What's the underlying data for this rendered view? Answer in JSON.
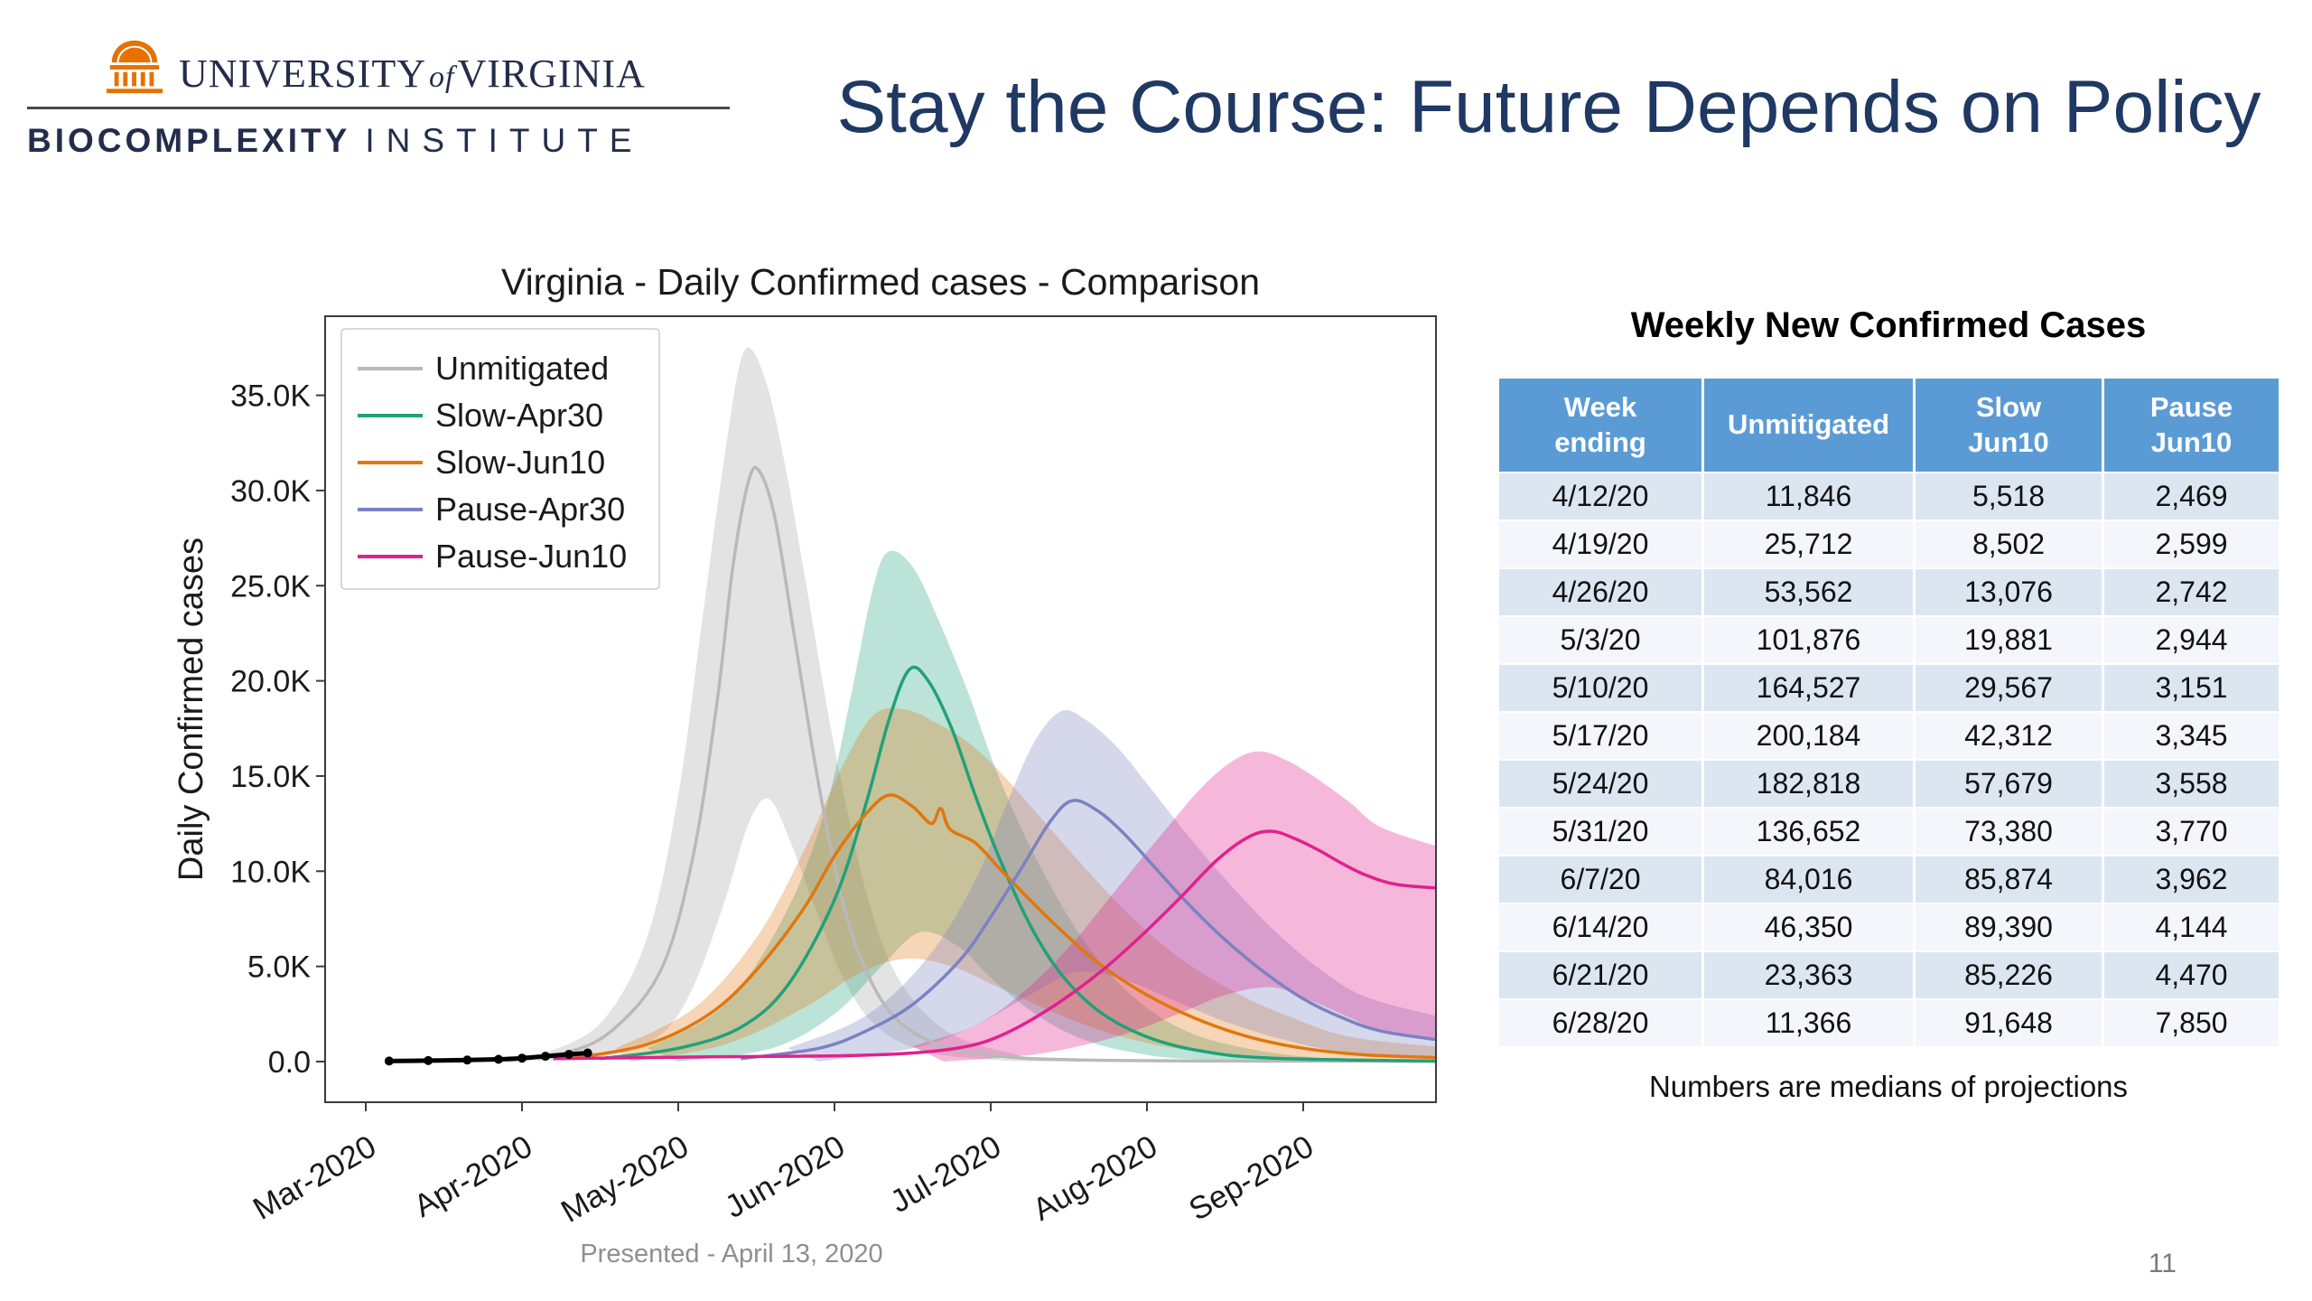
{
  "slide": {
    "title": "Stay the Course: Future Depends on Policy",
    "presented": "Presented - April 13, 2020",
    "page_number": "11"
  },
  "colors": {
    "navy": "#232D4B",
    "uva_orange": "#E57200",
    "title": "#1F3864"
  },
  "logo": {
    "university_pre": "UNIVERSITY",
    "university_of": "of",
    "university_post": "VIRGINIA",
    "institute_bold": "BIOCOMPLEXITY",
    "institute_light": "INSTITUTE"
  },
  "table": {
    "title": "Weekly New Confirmed Cases",
    "header_bg": "#5B9BD5",
    "row_odd_bg": "#DCE6F1",
    "row_even_bg": "#F3F6FA",
    "headers": [
      [
        "Week",
        "ending"
      ],
      [
        "Unmitigated"
      ],
      [
        "Slow",
        "Jun10"
      ],
      [
        "Pause",
        "Jun10"
      ]
    ],
    "rows": [
      [
        "4/12/20",
        "11,846",
        "5,518",
        "2,469"
      ],
      [
        "4/19/20",
        "25,712",
        "8,502",
        "2,599"
      ],
      [
        "4/26/20",
        "53,562",
        "13,076",
        "2,742"
      ],
      [
        "5/3/20",
        "101,876",
        "19,881",
        "2,944"
      ],
      [
        "5/10/20",
        "164,527",
        "29,567",
        "3,151"
      ],
      [
        "5/17/20",
        "200,184",
        "42,312",
        "3,345"
      ],
      [
        "5/24/20",
        "182,818",
        "57,679",
        "3,558"
      ],
      [
        "5/31/20",
        "136,652",
        "73,380",
        "3,770"
      ],
      [
        "6/7/20",
        "84,016",
        "85,874",
        "3,962"
      ],
      [
        "6/14/20",
        "46,350",
        "89,390",
        "4,144"
      ],
      [
        "6/21/20",
        "23,363",
        "85,226",
        "4,470"
      ],
      [
        "6/28/20",
        "11,366",
        "91,648",
        "7,850"
      ]
    ],
    "footnote": "Numbers are medians of projections"
  },
  "chart_data": {
    "type": "line",
    "title": "Virginia - Daily Confirmed cases - Comparison",
    "ylabel": "Daily Confirmed cases",
    "xlabel": "",
    "ylim": [
      0,
      37500
    ],
    "grid": false,
    "legend_position": "upper left",
    "x_ticks": [
      "Mar-2020",
      "Apr-2020",
      "May-2020",
      "Jun-2020",
      "Jul-2020",
      "Aug-2020",
      "Sep-2020"
    ],
    "y_ticks": [
      {
        "value": 0,
        "label": "0.0"
      },
      {
        "value": 5,
        "label": "5.0K"
      },
      {
        "value": 10,
        "label": "10.0K"
      },
      {
        "value": 15,
        "label": "15.0K"
      },
      {
        "value": 20,
        "label": "20.0K"
      },
      {
        "value": 25,
        "label": "25.0K"
      },
      {
        "value": 30,
        "label": "30.0K"
      },
      {
        "value": 35,
        "label": "35.0K"
      }
    ],
    "units": "x in months from Mar-2020, y in thousands of daily confirmed cases (medians with projection bands)",
    "observed": {
      "name": "Observed data",
      "color": "#000000",
      "points": [
        [
          0.15,
          0.03
        ],
        [
          0.4,
          0.05
        ],
        [
          0.65,
          0.08
        ],
        [
          0.85,
          0.12
        ],
        [
          1.0,
          0.18
        ],
        [
          1.15,
          0.28
        ],
        [
          1.3,
          0.38
        ],
        [
          1.42,
          0.45
        ]
      ]
    },
    "series": [
      {
        "name": "Unmitigated",
        "color": "#b9b9b9",
        "band_opacity": 0.4,
        "peak": {
          "x_month": 2.5,
          "y_k": 31.0
        },
        "median": [
          [
            0.9,
            0.05
          ],
          [
            1.3,
            0.5
          ],
          [
            1.6,
            1.8
          ],
          [
            1.9,
            5
          ],
          [
            2.1,
            11
          ],
          [
            2.25,
            19
          ],
          [
            2.35,
            26
          ],
          [
            2.45,
            30.5
          ],
          [
            2.52,
            31
          ],
          [
            2.62,
            28.5
          ],
          [
            2.75,
            22
          ],
          [
            2.9,
            14.5
          ],
          [
            3.05,
            8.5
          ],
          [
            3.2,
            4.8
          ],
          [
            3.4,
            2.2
          ],
          [
            3.7,
            0.8
          ],
          [
            4.1,
            0.25
          ],
          [
            4.6,
            0.08
          ],
          [
            5.5,
            0.03
          ],
          [
            6.9,
            0.02
          ]
        ],
        "band_upper": [
          [
            1.1,
            0.3
          ],
          [
            1.5,
            2
          ],
          [
            1.8,
            6.5
          ],
          [
            2.0,
            14
          ],
          [
            2.15,
            23
          ],
          [
            2.3,
            32
          ],
          [
            2.42,
            37.3
          ],
          [
            2.55,
            36
          ],
          [
            2.68,
            31.5
          ],
          [
            2.82,
            25
          ],
          [
            3.0,
            16.5
          ],
          [
            3.2,
            9
          ],
          [
            3.4,
            4.5
          ],
          [
            3.7,
            1.7
          ],
          [
            4.1,
            0.5
          ],
          [
            4.6,
            0.1
          ],
          [
            6.9,
            0.02
          ]
        ],
        "band_lower": [
          [
            1.1,
            0
          ],
          [
            1.6,
            0.4
          ],
          [
            1.9,
            1.5
          ],
          [
            2.1,
            4
          ],
          [
            2.3,
            8.5
          ],
          [
            2.45,
            12.5
          ],
          [
            2.58,
            13.8
          ],
          [
            2.72,
            11.5
          ],
          [
            2.88,
            8
          ],
          [
            3.05,
            4.5
          ],
          [
            3.25,
            2
          ],
          [
            3.55,
            0.6
          ],
          [
            4.0,
            0.1
          ],
          [
            4.6,
            0
          ],
          [
            6.9,
            0
          ]
        ]
      },
      {
        "name": "Slow-Apr30",
        "color": "#21a179",
        "band_opacity": 0.3,
        "peak": {
          "x_month": 3.45,
          "y_k": 20.6
        },
        "median": [
          [
            1.5,
            0.15
          ],
          [
            2.0,
            0.7
          ],
          [
            2.4,
            1.8
          ],
          [
            2.7,
            4
          ],
          [
            3.0,
            8.5
          ],
          [
            3.2,
            13.5
          ],
          [
            3.35,
            18
          ],
          [
            3.48,
            20.6
          ],
          [
            3.6,
            20
          ],
          [
            3.75,
            17.5
          ],
          [
            3.9,
            14
          ],
          [
            4.05,
            10.8
          ],
          [
            4.25,
            7.2
          ],
          [
            4.45,
            4.6
          ],
          [
            4.7,
            2.6
          ],
          [
            5.0,
            1.3
          ],
          [
            5.35,
            0.55
          ],
          [
            5.8,
            0.18
          ],
          [
            6.9,
            0.02
          ]
        ],
        "band_upper": [
          [
            1.8,
            0.7
          ],
          [
            2.3,
            3
          ],
          [
            2.7,
            8
          ],
          [
            2.95,
            13.5
          ],
          [
            3.1,
            19
          ],
          [
            3.25,
            25
          ],
          [
            3.35,
            26.8
          ],
          [
            3.5,
            26
          ],
          [
            3.65,
            23.5
          ],
          [
            3.85,
            19.5
          ],
          [
            4.05,
            15
          ],
          [
            4.3,
            10.5
          ],
          [
            4.6,
            6.3
          ],
          [
            4.9,
            3.5
          ],
          [
            5.25,
            1.6
          ],
          [
            5.7,
            0.6
          ],
          [
            6.2,
            0.15
          ],
          [
            6.9,
            0.03
          ]
        ],
        "band_lower": [
          [
            2.0,
            0
          ],
          [
            2.6,
            0.7
          ],
          [
            3.0,
            2.5
          ],
          [
            3.3,
            5
          ],
          [
            3.55,
            6.8
          ],
          [
            3.8,
            6
          ],
          [
            4.0,
            4.4
          ],
          [
            4.25,
            2.7
          ],
          [
            4.55,
            1.3
          ],
          [
            4.9,
            0.5
          ],
          [
            5.4,
            0.1
          ],
          [
            6.9,
            0
          ]
        ]
      },
      {
        "name": "Slow-Jun10",
        "color": "#e1770e",
        "band_opacity": 0.3,
        "peak": {
          "x_month": 3.35,
          "y_k": 14.0
        },
        "median": [
          [
            1.3,
            0.15
          ],
          [
            1.8,
            0.9
          ],
          [
            2.2,
            2.5
          ],
          [
            2.5,
            4.8
          ],
          [
            2.8,
            8
          ],
          [
            3.0,
            10.8
          ],
          [
            3.2,
            13
          ],
          [
            3.35,
            14
          ],
          [
            3.5,
            13.4
          ],
          [
            3.62,
            12.5
          ],
          [
            3.68,
            13.3
          ],
          [
            3.74,
            12.2
          ],
          [
            3.9,
            11.5
          ],
          [
            4.05,
            10.2
          ],
          [
            4.25,
            8.5
          ],
          [
            4.45,
            6.9
          ],
          [
            4.7,
            5.1
          ],
          [
            5.0,
            3.5
          ],
          [
            5.3,
            2.3
          ],
          [
            5.65,
            1.3
          ],
          [
            6.0,
            0.7
          ],
          [
            6.4,
            0.35
          ],
          [
            6.9,
            0.2
          ]
        ],
        "band_upper": [
          [
            1.6,
            0.7
          ],
          [
            2.1,
            2.8
          ],
          [
            2.5,
            6.5
          ],
          [
            2.8,
            11
          ],
          [
            3.05,
            15.5
          ],
          [
            3.25,
            18.2
          ],
          [
            3.45,
            18.5
          ],
          [
            3.65,
            17.8
          ],
          [
            3.85,
            16.8
          ],
          [
            4.05,
            15.3
          ],
          [
            4.3,
            13
          ],
          [
            4.6,
            10.2
          ],
          [
            4.9,
            7.6
          ],
          [
            5.2,
            5.5
          ],
          [
            5.55,
            3.7
          ],
          [
            5.9,
            2.4
          ],
          [
            6.3,
            1.3
          ],
          [
            6.9,
            0.75
          ]
        ],
        "band_lower": [
          [
            1.7,
            0
          ],
          [
            2.3,
            0.9
          ],
          [
            2.8,
            2.8
          ],
          [
            3.15,
            4.6
          ],
          [
            3.45,
            5.4
          ],
          [
            3.75,
            5
          ],
          [
            4.05,
            3.9
          ],
          [
            4.4,
            2.6
          ],
          [
            4.8,
            1.4
          ],
          [
            5.25,
            0.6
          ],
          [
            5.8,
            0.2
          ],
          [
            6.9,
            0.02
          ]
        ]
      },
      {
        "name": "Pause-Apr30",
        "color": "#7b82c1",
        "band_opacity": 0.32,
        "peak": {
          "x_month": 4.52,
          "y_k": 13.7
        },
        "median": [
          [
            2.4,
            0.15
          ],
          [
            2.9,
            0.7
          ],
          [
            3.2,
            1.6
          ],
          [
            3.5,
            3
          ],
          [
            3.8,
            5.3
          ],
          [
            4.0,
            7.6
          ],
          [
            4.2,
            10.2
          ],
          [
            4.38,
            12.6
          ],
          [
            4.52,
            13.7
          ],
          [
            4.68,
            13.2
          ],
          [
            4.85,
            12
          ],
          [
            5.05,
            10.2
          ],
          [
            5.25,
            8.4
          ],
          [
            5.5,
            6.4
          ],
          [
            5.75,
            4.7
          ],
          [
            6.0,
            3.3
          ],
          [
            6.25,
            2.3
          ],
          [
            6.5,
            1.6
          ],
          [
            6.9,
            1.1
          ]
        ],
        "band_upper": [
          [
            2.7,
            0.7
          ],
          [
            3.2,
            2.4
          ],
          [
            3.6,
            5.5
          ],
          [
            3.9,
            9.5
          ],
          [
            4.1,
            13.5
          ],
          [
            4.28,
            16.8
          ],
          [
            4.45,
            18.4
          ],
          [
            4.6,
            18
          ],
          [
            4.8,
            16.6
          ],
          [
            5.0,
            14.6
          ],
          [
            5.25,
            12
          ],
          [
            5.5,
            9.6
          ],
          [
            5.8,
            7
          ],
          [
            6.1,
            4.9
          ],
          [
            6.4,
            3.4
          ],
          [
            6.9,
            2.3
          ]
        ],
        "band_lower": [
          [
            2.9,
            0
          ],
          [
            3.5,
            0.7
          ],
          [
            3.9,
            1.9
          ],
          [
            4.25,
            3.5
          ],
          [
            4.55,
            4.7
          ],
          [
            4.85,
            4.3
          ],
          [
            5.15,
            3.3
          ],
          [
            5.5,
            2.1
          ],
          [
            5.9,
            1.1
          ],
          [
            6.3,
            0.45
          ],
          [
            6.9,
            0.15
          ]
        ]
      },
      {
        "name": "Pause-Jun10",
        "color": "#e0218e",
        "band_opacity": 0.32,
        "peak": {
          "x_month": 5.8,
          "y_k": 12.1
        },
        "median": [
          [
            1.2,
            0.15
          ],
          [
            2.2,
            0.25
          ],
          [
            3.0,
            0.3
          ],
          [
            3.5,
            0.45
          ],
          [
            3.85,
            0.8
          ],
          [
            4.1,
            1.5
          ],
          [
            4.4,
            2.9
          ],
          [
            4.7,
            4.7
          ],
          [
            4.95,
            6.5
          ],
          [
            5.2,
            8.5
          ],
          [
            5.45,
            10.6
          ],
          [
            5.65,
            11.8
          ],
          [
            5.8,
            12.1
          ],
          [
            5.95,
            11.7
          ],
          [
            6.1,
            11.1
          ],
          [
            6.25,
            10.4
          ],
          [
            6.4,
            9.8
          ],
          [
            6.6,
            9.3
          ],
          [
            6.9,
            9.1
          ]
        ],
        "band_upper": [
          [
            3.5,
            0.8
          ],
          [
            3.9,
            1.9
          ],
          [
            4.2,
            3.6
          ],
          [
            4.5,
            6
          ],
          [
            4.8,
            9
          ],
          [
            5.1,
            12
          ],
          [
            5.35,
            14.4
          ],
          [
            5.55,
            15.8
          ],
          [
            5.72,
            16.3
          ],
          [
            5.9,
            15.8
          ],
          [
            6.1,
            14.8
          ],
          [
            6.3,
            13.6
          ],
          [
            6.5,
            12.3
          ],
          [
            6.9,
            11.2
          ]
        ],
        "band_lower": [
          [
            3.7,
            0
          ],
          [
            4.3,
            0.4
          ],
          [
            4.8,
            1.3
          ],
          [
            5.2,
            2.5
          ],
          [
            5.5,
            3.5
          ],
          [
            5.8,
            3.9
          ],
          [
            6.05,
            3.2
          ],
          [
            6.3,
            2.3
          ],
          [
            6.5,
            1.6
          ],
          [
            6.9,
            1.2
          ]
        ]
      }
    ]
  }
}
